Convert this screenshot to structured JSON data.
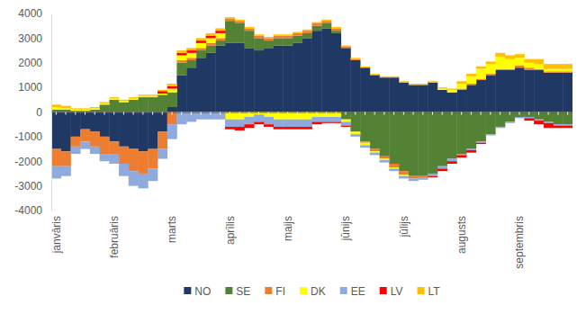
{
  "chart_data": {
    "type": "bar",
    "stacked": true,
    "grid": false,
    "legend": "bottom",
    "categories": [
      "janvāris",
      null,
      null,
      null,
      null,
      null,
      "februāris",
      null,
      null,
      null,
      null,
      null,
      "marts",
      null,
      null,
      null,
      null,
      null,
      "aprīlis",
      null,
      null,
      null,
      null,
      null,
      "maijs",
      null,
      null,
      null,
      null,
      null,
      "jūnijs",
      null,
      null,
      null,
      null,
      null,
      "jūlijs",
      null,
      null,
      null,
      null,
      null,
      "augusts",
      null,
      null,
      null,
      null,
      null,
      "septembris",
      null,
      null,
      null,
      null,
      null
    ],
    "ylim": [
      -4000,
      4000
    ],
    "yticks": [
      -4000,
      -3000,
      -2000,
      -1000,
      0,
      1000,
      2000,
      3000,
      4000
    ],
    "series": [
      {
        "name": "NO",
        "color": "#1f3864",
        "values": [
          -1500,
          -1600,
          -1000,
          -700,
          -800,
          -1000,
          -1200,
          -1400,
          -1500,
          -1600,
          -1500,
          -800,
          200,
          1500,
          1800,
          2200,
          2400,
          2700,
          2800,
          2800,
          2600,
          2500,
          2600,
          2700,
          2700,
          2800,
          3000,
          3300,
          3400,
          3200,
          2600,
          2100,
          1800,
          1500,
          1400,
          1400,
          1200,
          1100,
          1100,
          1200,
          900,
          800,
          900,
          1100,
          1300,
          1500,
          1700,
          1700,
          1800,
          1700,
          1700,
          1600,
          1600,
          1600
        ]
      },
      {
        "name": "SE",
        "color": "#548235",
        "values": [
          100,
          100,
          50,
          50,
          100,
          300,
          500,
          400,
          500,
          600,
          600,
          700,
          600,
          500,
          300,
          300,
          300,
          200,
          900,
          800,
          700,
          500,
          300,
          300,
          300,
          300,
          200,
          200,
          200,
          100,
          -300,
          -800,
          -1200,
          -1500,
          -1800,
          -2100,
          -2400,
          -2600,
          -2600,
          -2500,
          -2200,
          -1900,
          -1700,
          -1500,
          -1200,
          -900,
          -600,
          -400,
          -200,
          -200,
          -300,
          -400,
          -500,
          -500
        ]
      },
      {
        "name": "FI",
        "color": "#ed7d31",
        "values": [
          -700,
          -600,
          -400,
          -500,
          -600,
          -700,
          -500,
          -700,
          -900,
          -900,
          -800,
          -700,
          -500,
          100,
          100,
          100,
          100,
          100,
          100,
          100,
          100,
          100,
          100,
          100,
          100,
          100,
          100,
          100,
          100,
          100,
          50,
          50,
          -50,
          -100,
          -100,
          -150,
          -150,
          -100,
          -50,
          0,
          0,
          0,
          50,
          50,
          50,
          50,
          50,
          50,
          100,
          100,
          50,
          50,
          50,
          50
        ]
      },
      {
        "name": "DK",
        "color": "#ffff00",
        "values": [
          100,
          50,
          50,
          50,
          50,
          50,
          50,
          50,
          50,
          50,
          50,
          50,
          150,
          200,
          200,
          200,
          200,
          200,
          -300,
          -300,
          -200,
          -100,
          -200,
          -300,
          -300,
          -300,
          -300,
          -200,
          -200,
          -200,
          -100,
          -100,
          -100,
          -50,
          -50,
          -50,
          -50,
          0,
          0,
          0,
          50,
          100,
          200,
          300,
          400,
          400,
          500,
          400,
          300,
          200,
          200,
          100,
          100,
          100
        ]
      },
      {
        "name": "EE",
        "color": "#8faadc",
        "values": [
          -500,
          -400,
          -300,
          -300,
          -300,
          -300,
          -400,
          -500,
          -600,
          -600,
          -500,
          -400,
          -600,
          -500,
          -400,
          -300,
          -300,
          -300,
          -300,
          -300,
          -300,
          -300,
          -300,
          -300,
          -300,
          -300,
          -300,
          -200,
          -200,
          -200,
          -150,
          -100,
          -100,
          -100,
          -100,
          -100,
          -100,
          -100,
          -100,
          -100,
          -100,
          -100,
          -50,
          -50,
          -50,
          -50,
          -50,
          -50,
          -50,
          -50,
          -50,
          -50,
          -50,
          -50
        ]
      },
      {
        "name": "LV",
        "color": "#ff0000",
        "values": [
          0,
          0,
          0,
          0,
          0,
          0,
          0,
          0,
          0,
          0,
          0,
          100,
          100,
          100,
          100,
          100,
          100,
          100,
          -100,
          -150,
          -150,
          -100,
          -100,
          -100,
          -100,
          -100,
          -100,
          -100,
          -50,
          -50,
          -50,
          0,
          0,
          0,
          0,
          0,
          0,
          0,
          0,
          -50,
          -100,
          -100,
          -100,
          -100,
          -50,
          0,
          0,
          0,
          0,
          -100,
          -150,
          -200,
          -100,
          -100
        ]
      },
      {
        "name": "LT",
        "color": "#ffc000",
        "values": [
          100,
          100,
          50,
          50,
          50,
          50,
          50,
          50,
          50,
          50,
          50,
          50,
          100,
          100,
          100,
          100,
          100,
          100,
          50,
          50,
          50,
          50,
          50,
          50,
          50,
          50,
          50,
          50,
          50,
          50,
          50,
          50,
          50,
          50,
          50,
          50,
          50,
          50,
          50,
          50,
          50,
          50,
          100,
          100,
          100,
          100,
          150,
          150,
          150,
          150,
          200,
          200,
          200,
          200
        ]
      }
    ]
  }
}
